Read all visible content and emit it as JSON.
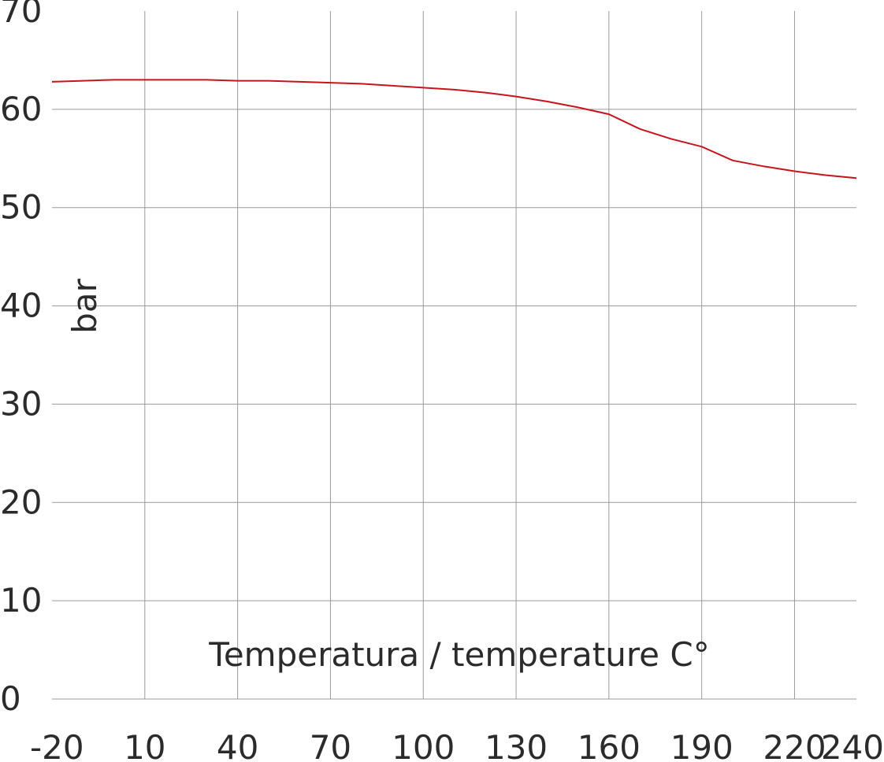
{
  "chart_data": {
    "type": "line",
    "xlabel": "Temperatura / temperature C°",
    "ylabel": "bar",
    "xlim": [
      -20,
      240
    ],
    "ylim": [
      0,
      70
    ],
    "x_ticks": [
      "-20",
      "10",
      "40",
      "70",
      "100",
      "130",
      "160",
      "190",
      "220",
      "240"
    ],
    "x_tick_values": [
      -20,
      10,
      40,
      70,
      100,
      130,
      160,
      190,
      220,
      240
    ],
    "y_ticks": [
      "0",
      "10",
      "20",
      "30",
      "40",
      "50",
      "60",
      "70"
    ],
    "y_tick_values": [
      0,
      10,
      20,
      30,
      40,
      50,
      60,
      70
    ],
    "grid": true,
    "series": [
      {
        "color": "#c8141b",
        "x": [
          -20,
          -10,
          0,
          10,
          20,
          30,
          40,
          50,
          60,
          70,
          80,
          90,
          100,
          110,
          120,
          130,
          140,
          150,
          160,
          170,
          180,
          190,
          200,
          210,
          220,
          230,
          240
        ],
        "y": [
          62.8,
          62.9,
          63.0,
          63.0,
          63.0,
          63.0,
          62.9,
          62.9,
          62.8,
          62.7,
          62.6,
          62.4,
          62.2,
          62.0,
          61.7,
          61.3,
          60.8,
          60.2,
          59.5,
          58.0,
          57.0,
          56.2,
          54.8,
          54.2,
          53.7,
          53.3,
          53.0
        ]
      }
    ]
  }
}
